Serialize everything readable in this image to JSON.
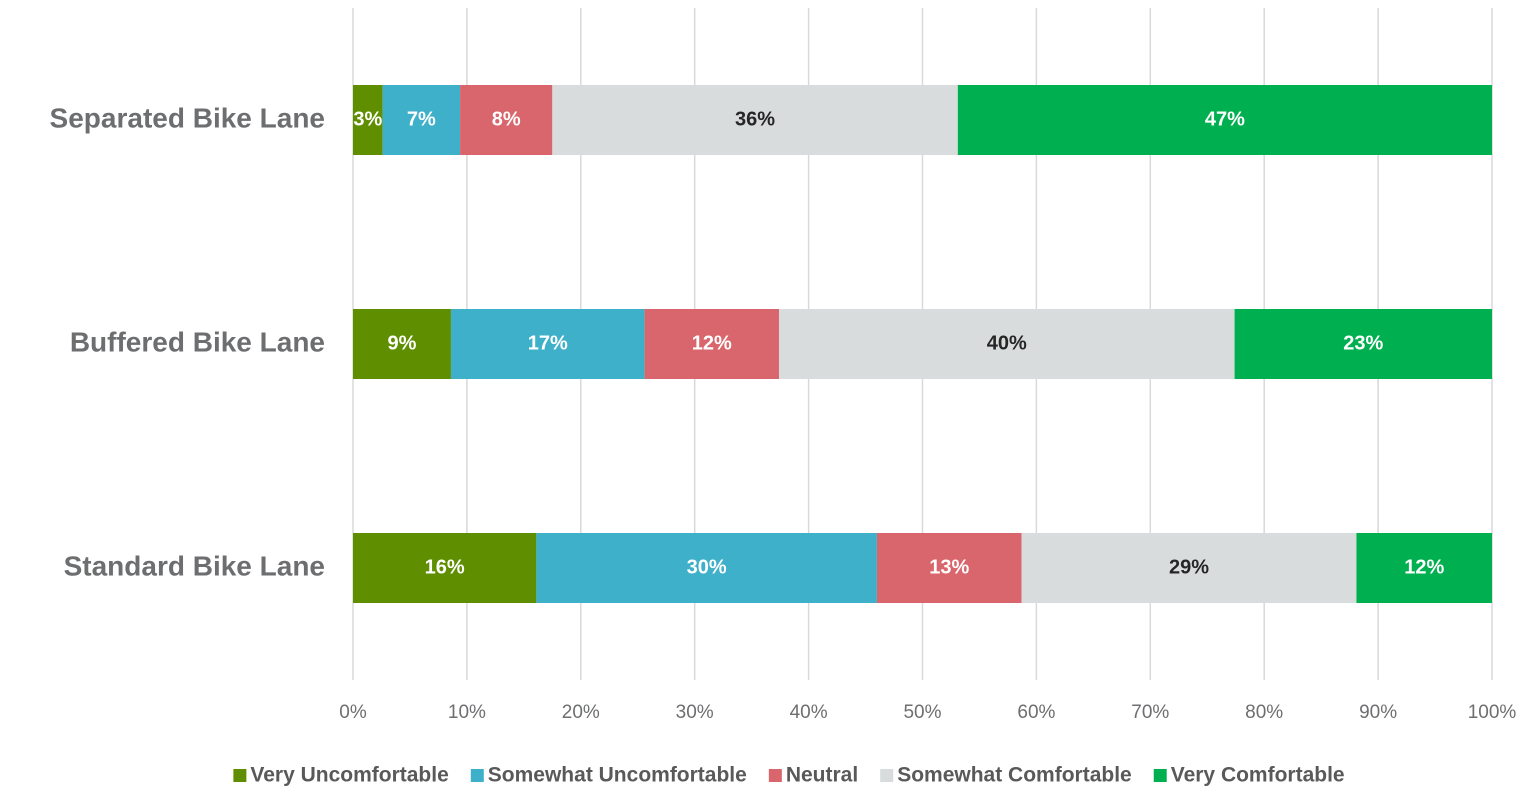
{
  "chart_data": {
    "type": "stacked_bar_horizontal",
    "categories": [
      "Separated Bike Lane",
      "Buffered Bike Lane",
      "Standard Bike Lane"
    ],
    "series": [
      {
        "name": "Very Uncomfortable",
        "color": "#5f8f00",
        "values": [
          2.6,
          8.6,
          16.1
        ],
        "value_labels": [
          "3%",
          "9%",
          "16%"
        ]
      },
      {
        "name": "Somewhat Uncomfortable",
        "color": "#3fb0c9",
        "values": [
          6.8,
          17.0,
          29.9
        ],
        "value_labels": [
          "7%",
          "17%",
          "30%"
        ]
      },
      {
        "name": "Neutral",
        "color": "#d9666c",
        "values": [
          8.1,
          11.8,
          12.7
        ],
        "value_labels": [
          "8%",
          "12%",
          "13%"
        ]
      },
      {
        "name": "Somewhat Comfortable",
        "color": "#d9dcdd",
        "values": [
          35.6,
          40.0,
          29.4
        ],
        "value_labels": [
          "36%",
          "40%",
          "29%"
        ]
      },
      {
        "name": "Very Comfortable",
        "color": "#00b050",
        "values": [
          46.9,
          22.6,
          11.9
        ],
        "value_labels": [
          "47%",
          "23%",
          "12%"
        ]
      }
    ],
    "xlim": [
      0,
      100
    ],
    "xticks": [
      {
        "value": 0,
        "label": "0%"
      },
      {
        "value": 10,
        "label": "10%"
      },
      {
        "value": 20,
        "label": "20%"
      },
      {
        "value": 30,
        "label": "30%"
      },
      {
        "value": 40,
        "label": "40%"
      },
      {
        "value": 50,
        "label": "50%"
      },
      {
        "value": 60,
        "label": "60%"
      },
      {
        "value": 70,
        "label": "70%"
      },
      {
        "value": 80,
        "label": "80%"
      },
      {
        "value": 90,
        "label": "90%"
      },
      {
        "value": 100,
        "label": "100%"
      }
    ],
    "grid": true,
    "legend": "bottom"
  }
}
